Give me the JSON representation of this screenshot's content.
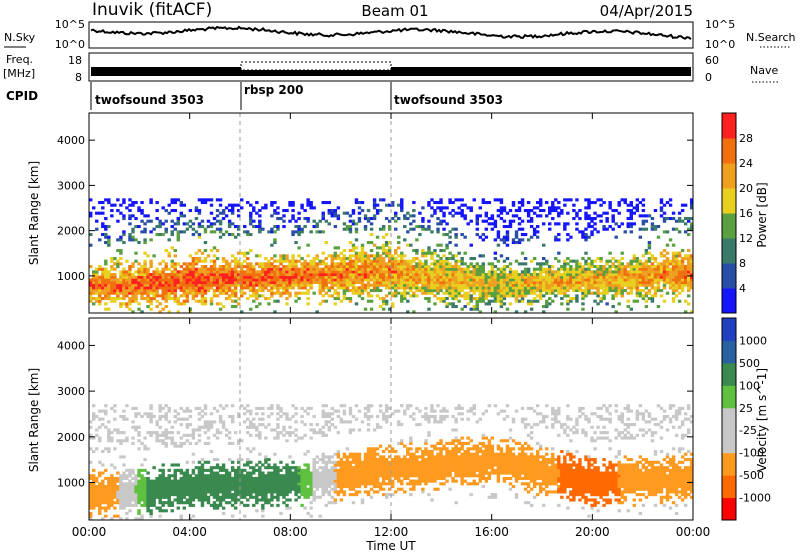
{
  "header": {
    "station": "Inuvik (fitACF)",
    "beam": "Beam 01",
    "date": "04/Apr/2015"
  },
  "noise_panel": {
    "left_label": "N.Sky",
    "left_ticks": [
      "10^5",
      "10^0"
    ],
    "right_ticks": [
      "10^5",
      "10^0"
    ],
    "right_label": "N.Search"
  },
  "freq_panel": {
    "left_label_top": "Freq.",
    "left_label_bottom": "[MHz]",
    "left_ticks": [
      "18",
      "8"
    ],
    "right_ticks": [
      "60",
      "0"
    ],
    "right_label": "Nave"
  },
  "cpid": {
    "label": "CPID",
    "segments": [
      {
        "name": "twofsound 3503",
        "start": 0,
        "end": 6
      },
      {
        "name": "rbsp 200",
        "start": 6,
        "end": 12
      },
      {
        "name": "twofsound 3503",
        "start": 12,
        "end": 24
      }
    ]
  },
  "colors": {
    "power": [
      "#1515ff",
      "#2a4ea8",
      "#3a7a6a",
      "#5aa040",
      "#e8d020",
      "#f0a020",
      "#f07010",
      "#ff2020"
    ],
    "velocity": [
      "#ff0000",
      "#ff6a00",
      "#ff9a20",
      "#c8c8c8",
      "#c8c8c8",
      "#60c040",
      "#3a8a50",
      "#2a60a0",
      "#2040c0"
    ]
  },
  "chart_data": [
    {
      "type": "heatmap",
      "title": "Power",
      "ylabel": "Slant Range [km]",
      "xlabel": "Time UT",
      "x_ticks": [
        "00:00",
        "04:00",
        "08:00",
        "12:00",
        "16:00",
        "20:00",
        "00:00"
      ],
      "x_range_hours": [
        0,
        24
      ],
      "y_ticks": [
        1000,
        2000,
        3000,
        4000
      ],
      "ylim": [
        180,
        4600
      ],
      "colorbar": {
        "label": "Power [dB]",
        "ticks": [
          4,
          8,
          12,
          16,
          20,
          24,
          28
        ],
        "range": [
          0,
          32
        ]
      },
      "profile": [
        {
          "t": 0,
          "center": 750,
          "spread": 450,
          "value": 26
        },
        {
          "t": 4,
          "center": 900,
          "spread": 500,
          "value": 28
        },
        {
          "t": 8,
          "center": 1000,
          "spread": 400,
          "value": 27
        },
        {
          "t": 12,
          "center": 1100,
          "spread": 600,
          "value": 24
        },
        {
          "t": 16,
          "center": 800,
          "spread": 500,
          "value": 20
        },
        {
          "t": 20,
          "center": 900,
          "spread": 400,
          "value": 22
        },
        {
          "t": 24,
          "center": 1100,
          "spread": 500,
          "value": 26
        }
      ]
    },
    {
      "type": "heatmap",
      "title": "Velocity",
      "ylabel": "Slant Range [km]",
      "xlabel": "Time UT",
      "x_ticks": [
        "00:00",
        "04:00",
        "08:00",
        "12:00",
        "16:00",
        "20:00",
        "00:00"
      ],
      "x_range_hours": [
        0,
        24
      ],
      "y_ticks": [
        1000,
        2000,
        3000,
        4000
      ],
      "ylim": [
        180,
        4600
      ],
      "colorbar": {
        "label": "Velocity [m s^-1]",
        "ticks": [
          -1000,
          -500,
          -100,
          -25,
          25,
          100,
          500,
          1000
        ]
      },
      "profile": [
        {
          "t": 0,
          "center": 750,
          "value": -300
        },
        {
          "t": 4,
          "center": 900,
          "value": 400
        },
        {
          "t": 8,
          "center": 1000,
          "value": 150
        },
        {
          "t": 12,
          "center": 1300,
          "value": -400
        },
        {
          "t": 16,
          "center": 1500,
          "value": -300
        },
        {
          "t": 20,
          "center": 1000,
          "value": -600
        },
        {
          "t": 24,
          "center": 1100,
          "value": -200
        }
      ]
    }
  ]
}
